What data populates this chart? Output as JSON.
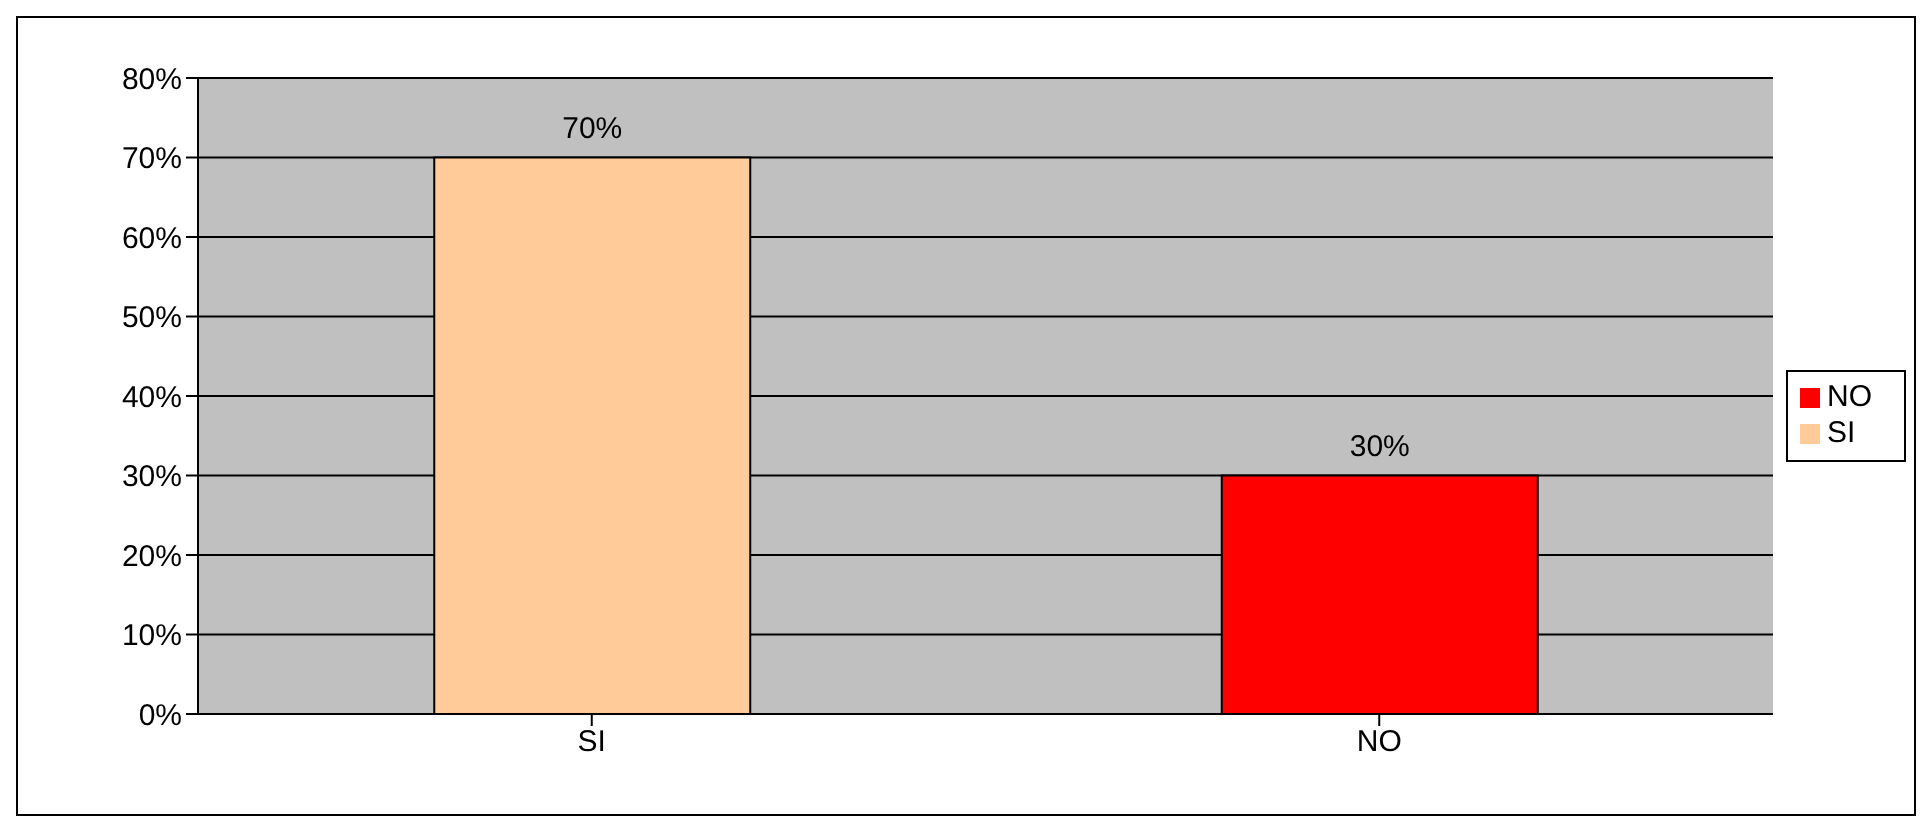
{
  "chart_data": {
    "type": "bar",
    "stacked": true,
    "categories": [
      "SI",
      "NO"
    ],
    "series": [
      {
        "name": "SI",
        "color": "#ffcc99",
        "values": [
          70,
          null
        ],
        "value_labels": [
          "70%",
          null
        ]
      },
      {
        "name": "NO",
        "color": "#ff0000",
        "values": [
          null,
          30
        ],
        "value_labels": [
          null,
          "30%"
        ]
      }
    ],
    "ylim": [
      0,
      80
    ],
    "yticks": [
      {
        "value": 0,
        "label": "0%"
      },
      {
        "value": 10,
        "label": "10%"
      },
      {
        "value": 20,
        "label": "20%"
      },
      {
        "value": 30,
        "label": "30%"
      },
      {
        "value": 40,
        "label": "40%"
      },
      {
        "value": 50,
        "label": "50%"
      },
      {
        "value": 60,
        "label": "60%"
      },
      {
        "value": 70,
        "label": "70%"
      },
      {
        "value": 80,
        "label": "80%"
      }
    ],
    "grid": "y",
    "legend": "right"
  }
}
